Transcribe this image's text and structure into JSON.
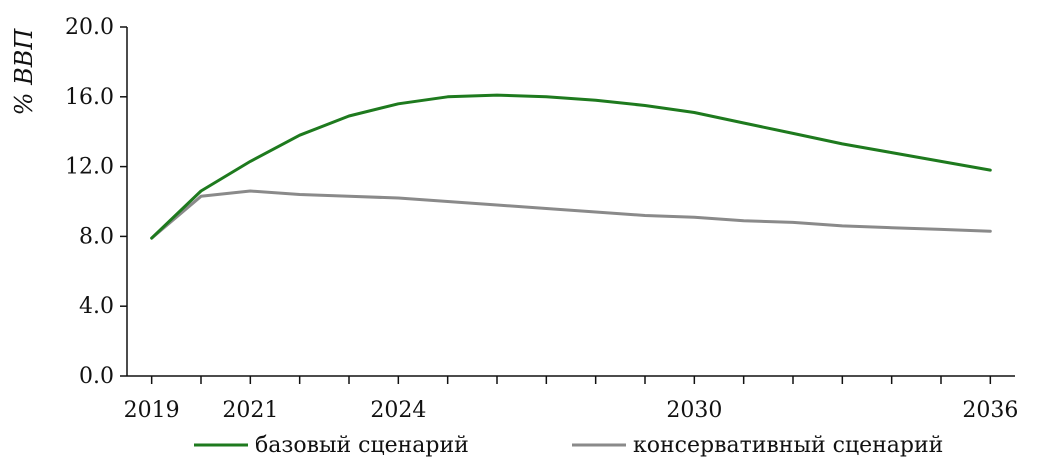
{
  "chart_data": {
    "type": "line",
    "title": "",
    "xlabel": "",
    "ylabel": "% ВВП",
    "xlim": [
      2018.5,
      2036.5
    ],
    "ylim": [
      0,
      20
    ],
    "x_tick_labels": [
      "2019",
      "2021",
      "2024",
      "2030",
      "2036"
    ],
    "x_tick_label_values": [
      2019,
      2021,
      2024,
      2030,
      2036
    ],
    "x_minor_ticks": [
      2019,
      2020,
      2021,
      2022,
      2023,
      2024,
      2025,
      2026,
      2027,
      2028,
      2029,
      2030,
      2031,
      2032,
      2033,
      2034,
      2035,
      2036
    ],
    "y_ticks": [
      0,
      4,
      8,
      12,
      16,
      20
    ],
    "y_tick_labels": [
      "0.0",
      "4.0",
      "8.0",
      "12.0",
      "16.0",
      "20.0"
    ],
    "grid": false,
    "legend_position": "bottom",
    "x": [
      2019,
      2020,
      2021,
      2022,
      2023,
      2024,
      2025,
      2026,
      2027,
      2028,
      2029,
      2030,
      2031,
      2032,
      2033,
      2034,
      2035,
      2036
    ],
    "series": [
      {
        "name": "базовый сценарий",
        "color": "#1e7a1e",
        "values": [
          7.9,
          10.6,
          12.3,
          13.8,
          14.9,
          15.6,
          16.0,
          16.1,
          16.0,
          15.8,
          15.5,
          15.1,
          14.5,
          13.9,
          13.3,
          12.8,
          12.3,
          11.8
        ]
      },
      {
        "name": "консервативный сценарий",
        "color": "#8a8a8a",
        "values": [
          7.9,
          10.3,
          10.6,
          10.4,
          10.3,
          10.2,
          10.0,
          9.8,
          9.6,
          9.4,
          9.2,
          9.1,
          8.9,
          8.8,
          8.6,
          8.5,
          8.4,
          8.3
        ]
      }
    ]
  }
}
